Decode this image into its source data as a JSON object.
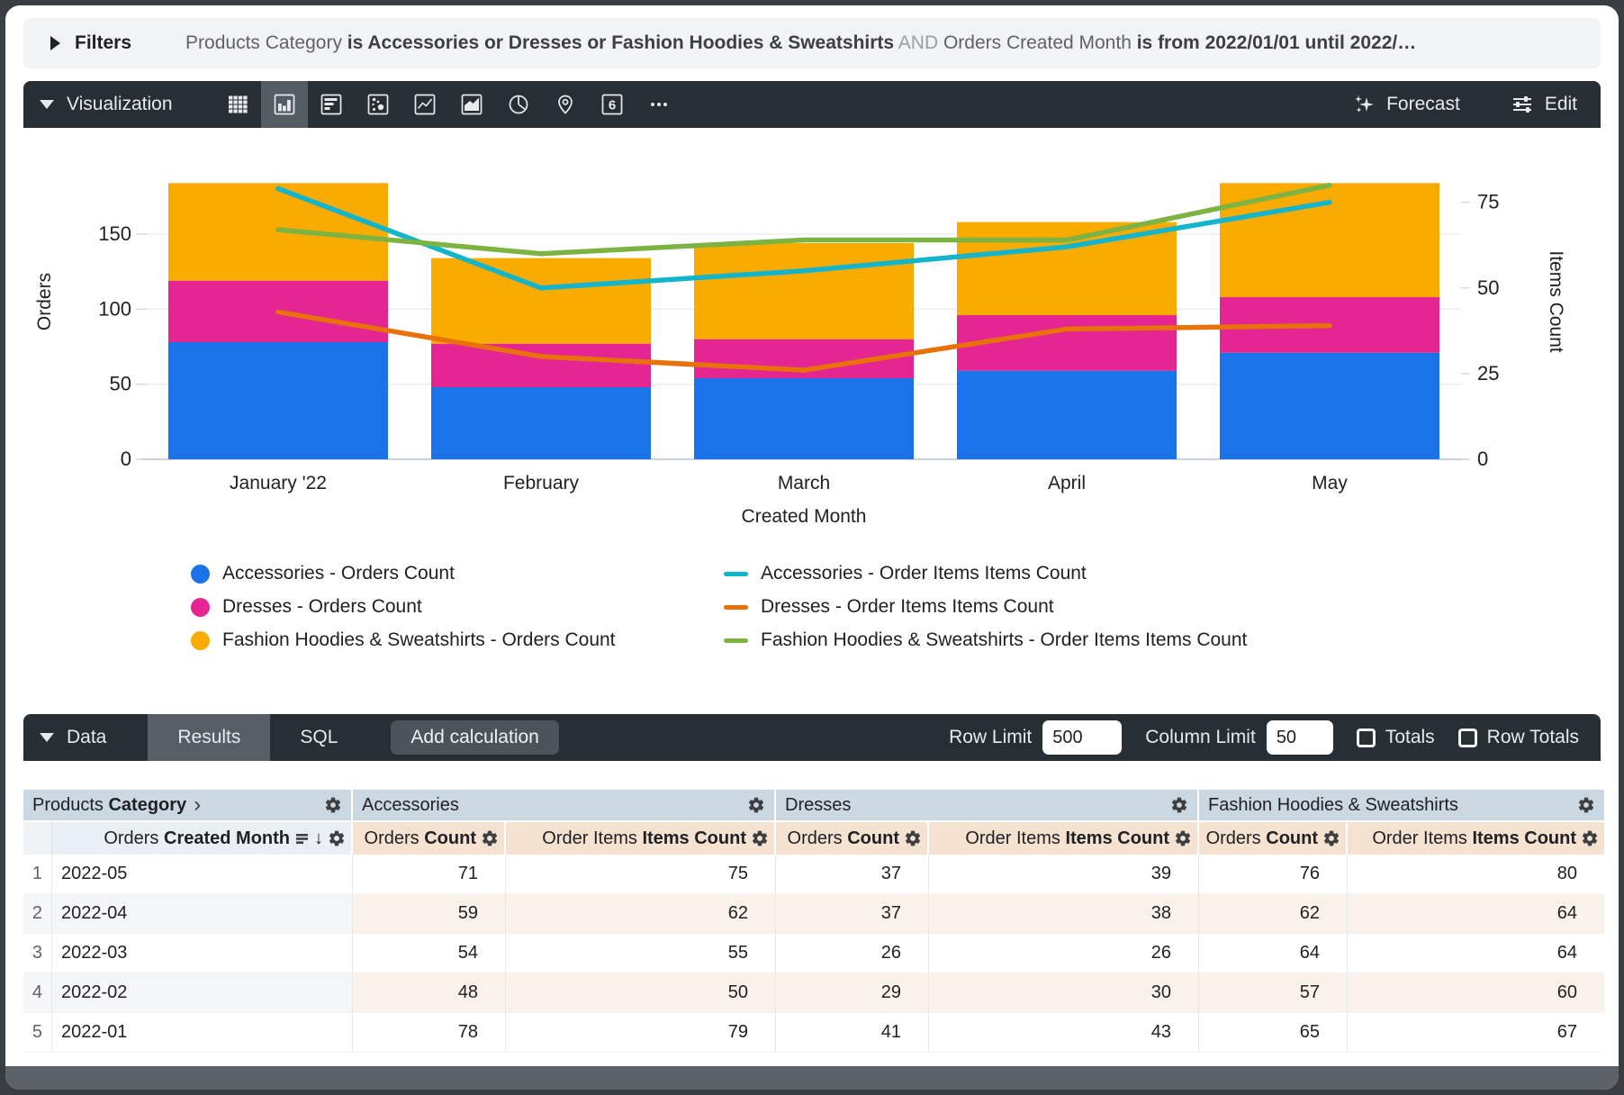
{
  "filters": {
    "label": "Filters",
    "segments": [
      {
        "text": "Products Category ",
        "style": "normal"
      },
      {
        "text": "is Accessories or Dresses or Fashion Hoodies & Sweatshirts",
        "style": "bold"
      },
      {
        "text": " AND ",
        "style": "muted"
      },
      {
        "text": "Orders Created Month ",
        "style": "normal"
      },
      {
        "text": "is from 2022/01/01 until 2022/…",
        "style": "bold"
      }
    ]
  },
  "viz_toolbar": {
    "label": "Visualization",
    "icons": [
      {
        "name": "table"
      },
      {
        "name": "column",
        "selected": true
      },
      {
        "name": "bar"
      },
      {
        "name": "scatter"
      },
      {
        "name": "line"
      },
      {
        "name": "area"
      },
      {
        "name": "pie"
      },
      {
        "name": "map"
      },
      {
        "name": "single-value",
        "glyph": "6"
      },
      {
        "name": "more"
      }
    ],
    "forecast_label": "Forecast",
    "edit_label": "Edit"
  },
  "chart_data": {
    "type": "combo-stacked-bar-line",
    "categories": [
      "January '22",
      "February",
      "March",
      "April",
      "May"
    ],
    "bar_series": [
      {
        "name": "Accessories - Orders Count",
        "color": "#1A73E8",
        "values": [
          78,
          48,
          54,
          59,
          71
        ]
      },
      {
        "name": "Dresses - Orders Count",
        "color": "#E52592",
        "values": [
          41,
          29,
          26,
          37,
          37
        ]
      },
      {
        "name": "Fashion Hoodies & Sweatshirts - Orders Count",
        "color": "#F9AB00",
        "values": [
          65,
          57,
          64,
          62,
          76
        ]
      }
    ],
    "line_series": [
      {
        "name": "Accessories - Order Items Items Count",
        "color": "#12B5CB",
        "values": [
          79,
          50,
          55,
          62,
          75
        ]
      },
      {
        "name": "Dresses - Order Items Items Count",
        "color": "#E8710A",
        "values": [
          43,
          30,
          26,
          38,
          39
        ]
      },
      {
        "name": "Fashion Hoodies & Sweatshirts - Order Items Items Count",
        "color": "#7CB342",
        "values": [
          67,
          60,
          64,
          64,
          80
        ]
      }
    ],
    "xlabel": "Created Month",
    "ylabel": "Orders",
    "y2label": "Items Count",
    "left_ticks": [
      0,
      50,
      100,
      150
    ],
    "right_ticks": [
      0,
      25,
      50,
      75
    ],
    "ylim": [
      0,
      210
    ],
    "y2lim": [
      0,
      92
    ],
    "grid": true,
    "legend_position": "bottom"
  },
  "data_toolbar": {
    "label": "Data",
    "tabs": [
      {
        "label": "Results",
        "selected": true
      },
      {
        "label": "SQL",
        "selected": false
      }
    ],
    "add_calculation_label": "Add calculation",
    "row_limit_label": "Row Limit",
    "row_limit_value": "500",
    "column_limit_label": "Column Limit",
    "column_limit_value": "50",
    "totals_label": "Totals",
    "row_totals_label": "Row Totals"
  },
  "table": {
    "pivot_header": {
      "prefix": "Products ",
      "bold": "Category"
    },
    "groups": [
      "Accessories",
      "Dresses",
      "Fashion Hoodies & Sweatshirts"
    ],
    "dim_header": {
      "prefix": "Orders ",
      "bold": "Created Month",
      "sort_arrow": "↓"
    },
    "measure_cols": [
      {
        "prefix": "Orders ",
        "bold": "Count"
      },
      {
        "prefix": "Order Items ",
        "bold": "Items Count"
      }
    ],
    "rows": [
      {
        "n": "1",
        "month": "2022-05",
        "values": [
          "71",
          "75",
          "37",
          "39",
          "76",
          "80"
        ]
      },
      {
        "n": "2",
        "month": "2022-04",
        "values": [
          "59",
          "62",
          "37",
          "38",
          "62",
          "64"
        ]
      },
      {
        "n": "3",
        "month": "2022-03",
        "values": [
          "54",
          "55",
          "26",
          "26",
          "64",
          "64"
        ]
      },
      {
        "n": "4",
        "month": "2022-02",
        "values": [
          "48",
          "50",
          "29",
          "30",
          "57",
          "60"
        ]
      },
      {
        "n": "5",
        "month": "2022-01",
        "values": [
          "78",
          "79",
          "41",
          "43",
          "65",
          "67"
        ]
      }
    ]
  }
}
